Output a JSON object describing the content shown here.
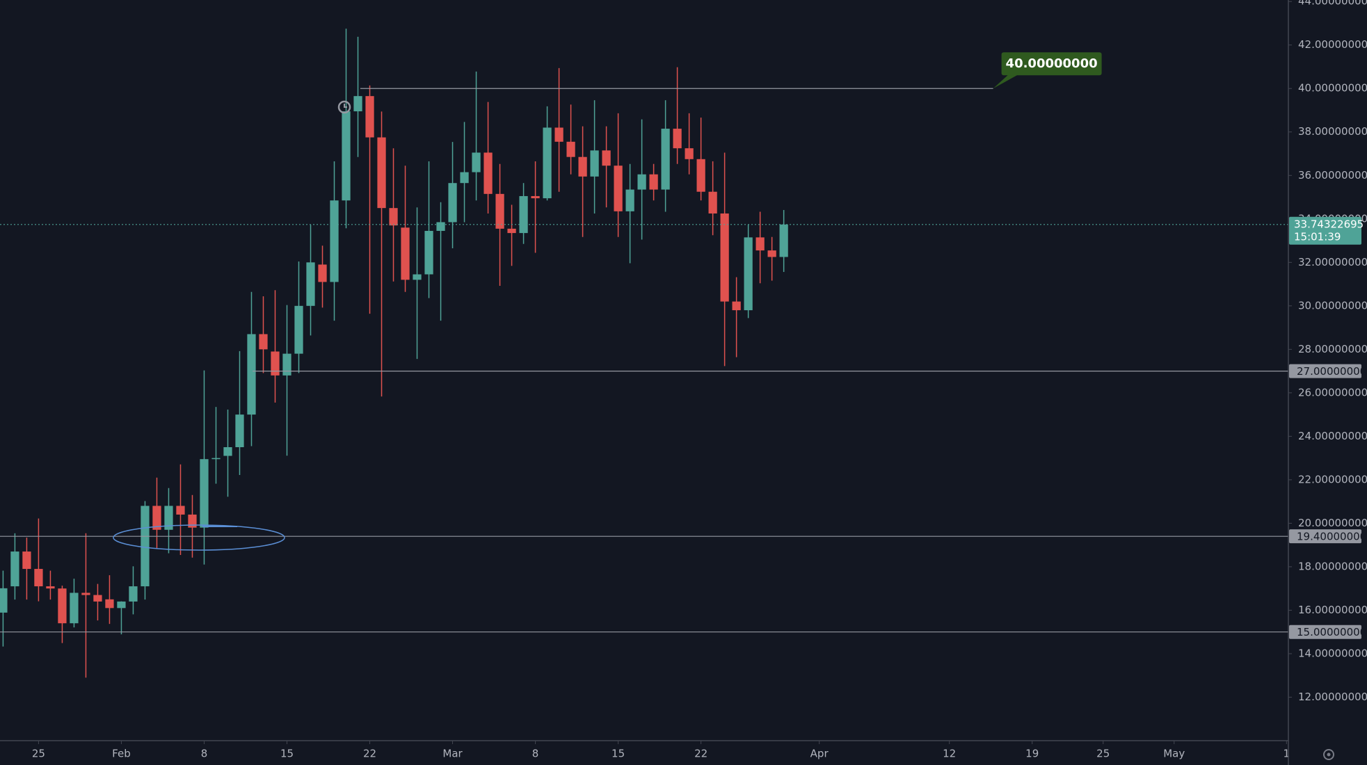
{
  "chart_data": {
    "type": "candlestick",
    "up_color": "#4fa397",
    "down_color": "#e0524f",
    "open": [
      15.89,
      17.1,
      18.7,
      17.9,
      17.1,
      17.0,
      15.4,
      16.8,
      16.7,
      16.5,
      16.1,
      16.4,
      17.1,
      20.8,
      19.7,
      20.8,
      20.4,
      19.8,
      22.95,
      23.1,
      23.5,
      25.0,
      28.7,
      27.9,
      26.8,
      27.8,
      30.0,
      31.9,
      31.1,
      34.85,
      38.95,
      39.65,
      37.75,
      34.5,
      33.6,
      31.2,
      31.45,
      33.45,
      33.85,
      35.65,
      36.15,
      37.05,
      35.15,
      33.55,
      33.35,
      35.05,
      34.95,
      38.2,
      37.55,
      36.85,
      35.95,
      37.15,
      36.45,
      34.35,
      35.35,
      36.05,
      35.35,
      38.15,
      37.25,
      36.75,
      35.25,
      34.25,
      30.2,
      29.8,
      33.15,
      32.55,
      32.25
    ],
    "high": [
      17.82,
      19.54,
      19.34,
      20.22,
      17.82,
      17.13,
      17.45,
      19.54,
      17.21,
      17.61,
      16.41,
      18.02,
      21.02,
      22.1,
      21.62,
      22.71,
      21.3,
      27.03,
      25.35,
      25.23,
      27.92,
      30.64,
      30.44,
      30.72,
      30.04,
      32.04,
      33.73,
      32.77,
      36.65,
      42.75,
      42.38,
      40.14,
      38.94,
      37.25,
      36.45,
      34.53,
      36.65,
      34.77,
      37.54,
      38.46,
      40.78,
      39.38,
      36.53,
      34.65,
      35.65,
      36.65,
      39.18,
      40.94,
      39.26,
      38.26,
      39.46,
      38.26,
      38.86,
      36.53,
      38.58,
      36.53,
      39.46,
      40.98,
      38.86,
      38.66,
      36.65,
      37.05,
      31.32,
      33.73,
      34.33,
      33.17,
      34.41
    ],
    "low": [
      14.33,
      16.49,
      16.49,
      16.41,
      16.49,
      14.49,
      15.21,
      12.9,
      15.53,
      15.37,
      14.89,
      15.81,
      16.49,
      18.82,
      18.62,
      18.54,
      18.42,
      18.1,
      21.82,
      21.22,
      22.22,
      23.55,
      26.91,
      25.55,
      23.11,
      26.91,
      28.64,
      29.92,
      29.32,
      33.57,
      36.85,
      29.64,
      25.83,
      31.12,
      30.64,
      27.56,
      30.36,
      29.32,
      32.65,
      33.85,
      34.85,
      34.25,
      30.92,
      31.84,
      32.85,
      32.44,
      34.85,
      35.25,
      36.05,
      33.17,
      34.25,
      34.53,
      33.17,
      31.96,
      33.05,
      34.85,
      34.33,
      36.53,
      36.05,
      34.85,
      33.25,
      27.23,
      27.64,
      29.44,
      31.04,
      31.16,
      31.56
    ],
    "close": [
      17.01,
      18.7,
      17.9,
      17.1,
      17.0,
      15.4,
      16.8,
      16.7,
      16.4,
      16.1,
      16.4,
      17.1,
      20.8,
      19.7,
      20.8,
      20.4,
      19.8,
      22.95,
      23.0,
      23.5,
      25.0,
      28.7,
      28.0,
      26.8,
      27.8,
      30.0,
      32.0,
      31.1,
      34.85,
      38.95,
      39.65,
      37.75,
      34.5,
      33.7,
      31.2,
      31.45,
      33.45,
      33.85,
      35.65,
      36.15,
      37.05,
      35.15,
      33.55,
      33.35,
      35.05,
      34.95,
      38.2,
      37.55,
      36.85,
      35.95,
      37.15,
      36.45,
      34.35,
      35.35,
      36.05,
      35.35,
      38.15,
      37.25,
      36.75,
      35.25,
      34.25,
      30.2,
      29.8,
      33.15,
      32.55,
      32.25,
      33.74322695
    ],
    "xlim": [
      -0.26,
      108.66
    ],
    "xticks": [
      {
        "value": 3,
        "label": "25"
      },
      {
        "value": 10,
        "label": "Feb"
      },
      {
        "value": 17,
        "label": "8"
      },
      {
        "value": 24,
        "label": "15"
      },
      {
        "value": 31,
        "label": "22"
      },
      {
        "value": 38,
        "label": "Mar"
      },
      {
        "value": 45,
        "label": "8"
      },
      {
        "value": 52,
        "label": "15"
      },
      {
        "value": 59,
        "label": "22"
      },
      {
        "value": 69,
        "label": "Apr"
      },
      {
        "value": 80,
        "label": "12"
      },
      {
        "value": 87,
        "label": "19"
      },
      {
        "value": 93,
        "label": "25"
      },
      {
        "value": 99,
        "label": "May"
      },
      {
        "value": 108.5,
        "label": "1"
      }
    ],
    "ylim": [
      10,
      44.07
    ],
    "yticks": [
      {
        "value": 12,
        "label": "12.00000000"
      },
      {
        "value": 14,
        "label": "14.00000000"
      },
      {
        "value": 16,
        "label": "16.00000000"
      },
      {
        "value": 18,
        "label": "18.00000000"
      },
      {
        "value": 20,
        "label": "20.00000000"
      },
      {
        "value": 22,
        "label": "22.00000000"
      },
      {
        "value": 24,
        "label": "24.00000000"
      },
      {
        "value": 26,
        "label": "26.00000000"
      },
      {
        "value": 28,
        "label": "28.00000000"
      },
      {
        "value": 30,
        "label": "30.00000000"
      },
      {
        "value": 32,
        "label": "32.00000000"
      },
      {
        "value": 34,
        "label": "34.00000000"
      },
      {
        "value": 36,
        "label": "36.00000000"
      },
      {
        "value": 38,
        "label": "38.00000000"
      },
      {
        "value": 40,
        "label": "40.00000000"
      },
      {
        "value": 42,
        "label": "42.00000000"
      },
      {
        "value": 44,
        "label": "44.00000000"
      }
    ],
    "price_lines": [
      {
        "value": 27,
        "label": "27.00000000"
      },
      {
        "value": 19.4,
        "label": "19.40000000"
      },
      {
        "value": 15,
        "label": "15.00000000"
      }
    ],
    "callout": {
      "value": 40,
      "label": "40.00000000"
    },
    "last_price": {
      "value": 33.74322695,
      "label": "33.74322695",
      "countdown": "15:01:39"
    }
  }
}
